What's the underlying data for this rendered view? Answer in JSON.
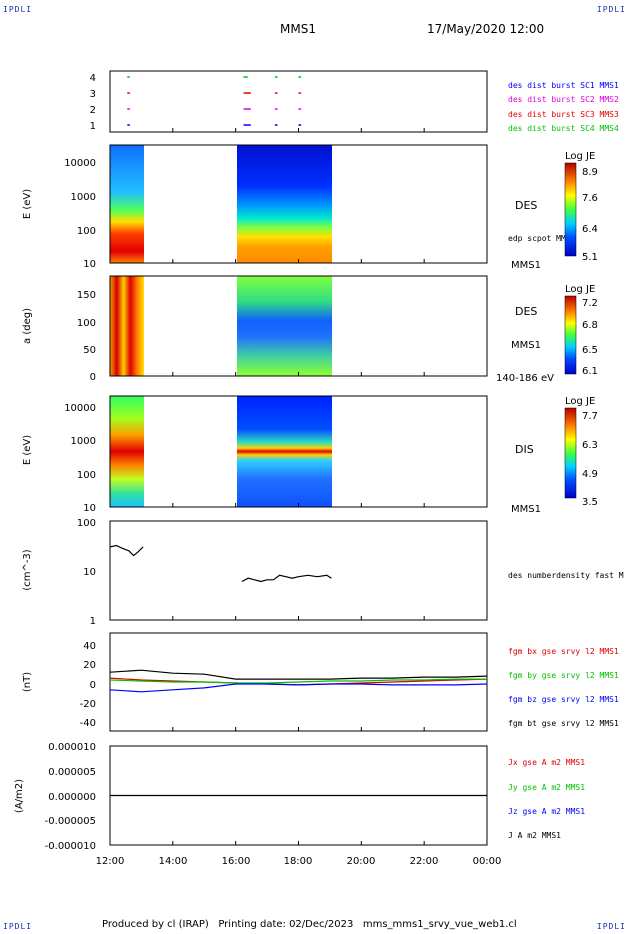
{
  "header": {
    "corner_label": "IPDLI",
    "mission": "MMS1",
    "datetime": "17/May/2020 12:00"
  },
  "footer": {
    "text": "Produced by cl (IRAP)   Printing date: 02/Dec/2023   mms_mms1_srvy_vue_web1.cl"
  },
  "time_axis": {
    "tick_labels": [
      "12:00",
      "14:00",
      "16:00",
      "18:00",
      "20:00",
      "22:00",
      "00:00"
    ],
    "start_hour": 12,
    "end_hour": 24
  },
  "colors": {
    "red": "#e00000",
    "green": "#00c000",
    "blue": "#0000ff",
    "magenta": "#e000e0",
    "black": "#000000",
    "corner": "#1a2fb0"
  },
  "panels": {
    "availability": {
      "y_ticks": [
        "1",
        "2",
        "3",
        "4"
      ],
      "legend": [
        {
          "text": "des dist burst SC1 MMS1",
          "color": "#0000ff"
        },
        {
          "text": "des dist burst SC2 MMS2",
          "color": "#e000e0"
        },
        {
          "text": "des dist burst SC3 MMS3",
          "color": "#e00000"
        },
        {
          "text": "des dist burst SC4 MMS4",
          "color": "#00c000"
        }
      ]
    },
    "des_energy": {
      "ylabel": "E (eV)",
      "y_ticks": [
        "10",
        "100",
        "1000",
        "10000"
      ],
      "label": "DES",
      "sublabel": "edp scpot MMS1",
      "bottom_label": "MMS1",
      "colorbar": {
        "title": "Log JE",
        "ticks": [
          "8.9",
          "7.6",
          "6.4",
          "5.1"
        ]
      }
    },
    "des_pitch": {
      "ylabel": "a (deg)",
      "y_ticks": [
        "0",
        "50",
        "100",
        "150"
      ],
      "label": "DES",
      "sublabel": "MMS1",
      "bottom_label": "140-186 eV",
      "colorbar": {
        "title": "Log JE",
        "ticks": [
          "7.2",
          "6.8",
          "6.5",
          "6.1"
        ]
      }
    },
    "dis_energy": {
      "ylabel": "E (eV)",
      "y_ticks": [
        "10",
        "100",
        "1000",
        "10000"
      ],
      "label": "DIS",
      "bottom_label": "MMS1",
      "colorbar": {
        "title": "Log JE",
        "ticks": [
          "7.7",
          "6.3",
          "4.9",
          "3.5"
        ]
      }
    },
    "density": {
      "ylabel": "(cm^-3)",
      "y_ticks": [
        "1",
        "10",
        "100"
      ],
      "label": "des numberdensity fast M"
    },
    "magnetic": {
      "ylabel": "(nT)",
      "y_ticks": [
        "-40",
        "-20",
        "0",
        "20",
        "40"
      ],
      "legend": [
        {
          "text": "fgm bx gse srvy l2 MMS1",
          "color": "#e00000"
        },
        {
          "text": "fgm by gse srvy l2 MMS1",
          "color": "#00c000"
        },
        {
          "text": "fgm bz gse srvy l2 MMS1",
          "color": "#0000ff"
        },
        {
          "text": "fgm bt gse srvy l2 MMS1",
          "color": "#000000"
        }
      ]
    },
    "current": {
      "ylabel": "(A/m2)",
      "y_ticks": [
        "-0.000010",
        "-0.000005",
        "0.000000",
        "0.000005",
        "0.000010"
      ],
      "legend": [
        {
          "text": "Jx gse A m2 MMS1",
          "color": "#e00000"
        },
        {
          "text": "Jy gse A m2 MMS1",
          "color": "#00c000"
        },
        {
          "text": "Jz gse A m2 MMS1",
          "color": "#0000ff"
        },
        {
          "text": "J A m2 MMS1",
          "color": "#000000"
        }
      ]
    }
  },
  "chart_data": {
    "type": "line",
    "title": "MMS1",
    "x_range_hours": [
      12,
      24
    ],
    "availability_segments": [
      {
        "sc": 4,
        "hours": [
          [
            12.55,
            12.6
          ],
          [
            16.25,
            16.35
          ],
          [
            17.25,
            17.3
          ],
          [
            18.0,
            18.05
          ]
        ]
      },
      {
        "sc": 3,
        "hours": [
          [
            12.55,
            12.6
          ],
          [
            16.25,
            16.45
          ],
          [
            17.25,
            17.3
          ],
          [
            18.0,
            18.05
          ]
        ]
      },
      {
        "sc": 2,
        "hours": [
          [
            12.55,
            12.6
          ],
          [
            16.25,
            16.45
          ],
          [
            17.25,
            17.3
          ],
          [
            18.0,
            18.05
          ]
        ]
      },
      {
        "sc": 1,
        "hours": [
          [
            12.55,
            12.6
          ],
          [
            16.25,
            16.45
          ],
          [
            17.25,
            17.3
          ],
          [
            18.0,
            18.05
          ]
        ]
      }
    ],
    "spectrogram_intervals_hours": [
      [
        12.0,
        13.05
      ],
      [
        16.05,
        19.05
      ]
    ],
    "density": {
      "ylim": [
        1,
        100
      ],
      "scale": "log",
      "x_hours": [
        12.0,
        12.2,
        12.4,
        12.6,
        12.75,
        12.9,
        13.05,
        16.2,
        16.4,
        16.6,
        16.8,
        17.0,
        17.2,
        17.4,
        17.6,
        17.8,
        18.0,
        18.3,
        18.6,
        18.9,
        19.05
      ],
      "y": [
        30,
        32,
        28,
        25,
        20,
        24,
        30,
        6,
        7,
        6.5,
        6,
        6.5,
        6.5,
        8,
        7.5,
        7,
        7.5,
        8,
        7.5,
        8,
        7
      ]
    },
    "magnetic": {
      "ylim": [
        -50,
        50
      ],
      "series": [
        {
          "name": "fgm bx gse srvy l2 MMS1",
          "x_hours": [
            12,
            13,
            14,
            15,
            16,
            17,
            18,
            19,
            20,
            21,
            22,
            23,
            24
          ],
          "y": [
            4,
            2,
            1,
            0,
            -1,
            -2,
            -3,
            -2,
            -1,
            0,
            1,
            2,
            3
          ]
        },
        {
          "name": "fgm by gse srvy l2 MMS1",
          "x_hours": [
            12,
            13,
            14,
            15,
            16,
            17,
            18,
            19,
            20,
            21,
            22,
            23,
            24
          ],
          "y": [
            2,
            1,
            0,
            0,
            -1,
            -1,
            0,
            1,
            1,
            2,
            2,
            3,
            3
          ]
        },
        {
          "name": "fgm bz gse srvy l2 MMS1",
          "x_hours": [
            12,
            13,
            14,
            15,
            16,
            17,
            18,
            19,
            20,
            21,
            22,
            23,
            24
          ],
          "y": [
            -8,
            -10,
            -8,
            -6,
            -2,
            -2,
            -3,
            -2,
            -2,
            -3,
            -3,
            -3,
            -2
          ]
        },
        {
          "name": "fgm bt gse srvy l2 MMS1",
          "x_hours": [
            12,
            13,
            14,
            15,
            16,
            17,
            18,
            19,
            20,
            21,
            22,
            23,
            24
          ],
          "y": [
            10,
            12,
            9,
            8,
            3,
            3,
            3,
            3,
            4,
            4,
            5,
            5,
            6
          ]
        }
      ]
    },
    "current": {
      "ylim": [
        -1e-05,
        1e-05
      ],
      "series": [
        {
          "name": "J A m2 MMS1",
          "x_hours": [
            12,
            14,
            16,
            18,
            20,
            22,
            24
          ],
          "y": [
            0,
            0,
            0,
            0,
            0,
            0,
            0
          ]
        }
      ]
    }
  }
}
